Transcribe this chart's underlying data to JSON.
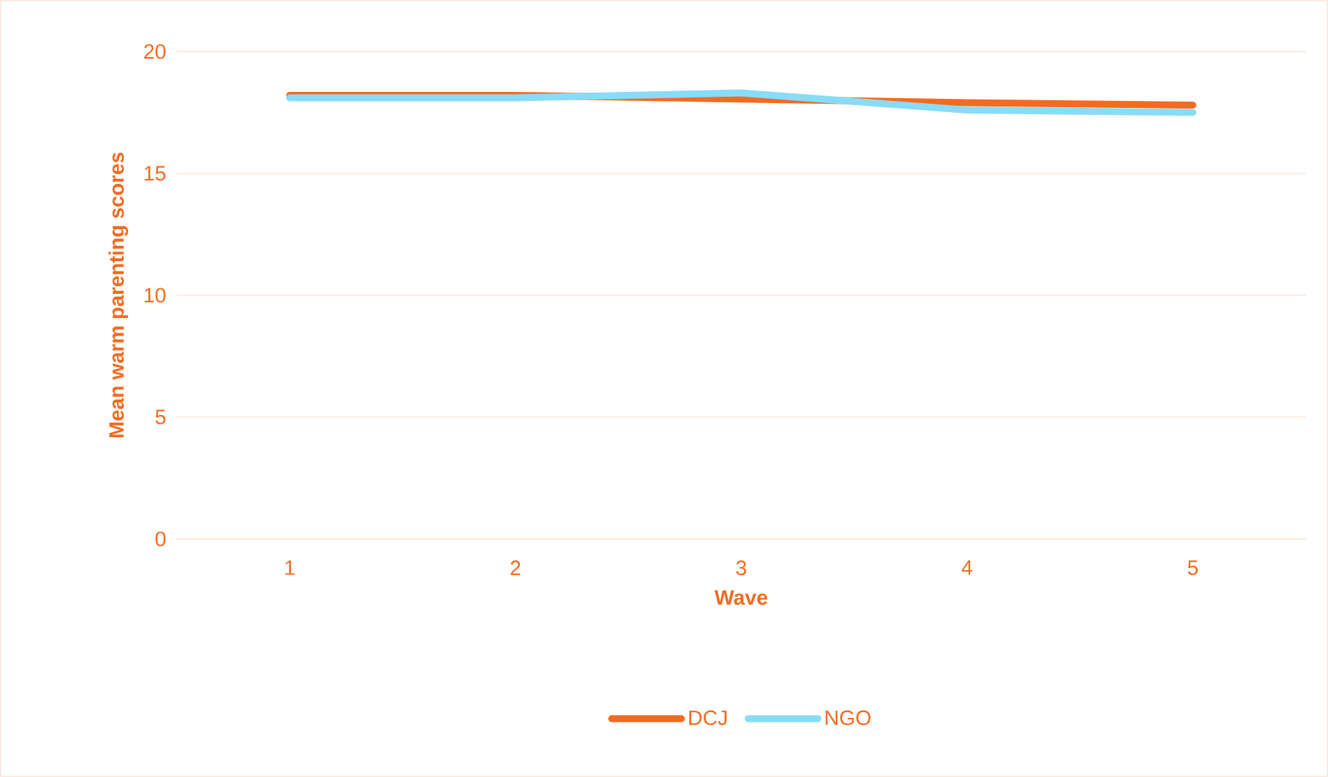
{
  "chart_data": {
    "type": "line",
    "xlabel": "Wave",
    "ylabel": "Mean warm parenting scores",
    "categories": [
      "1",
      "2",
      "3",
      "4",
      "5"
    ],
    "series": [
      {
        "name": "DCJ",
        "color": "#f26b21",
        "values": [
          18.2,
          18.2,
          18.05,
          17.9,
          17.8
        ]
      },
      {
        "name": "NGO",
        "color": "#88dcf8",
        "values": [
          18.1,
          18.1,
          18.3,
          17.6,
          17.5
        ]
      }
    ],
    "ylim": [
      0,
      20
    ],
    "yticks": [
      0,
      5,
      10,
      15,
      20
    ],
    "grid": "y",
    "legend": "bottom"
  }
}
